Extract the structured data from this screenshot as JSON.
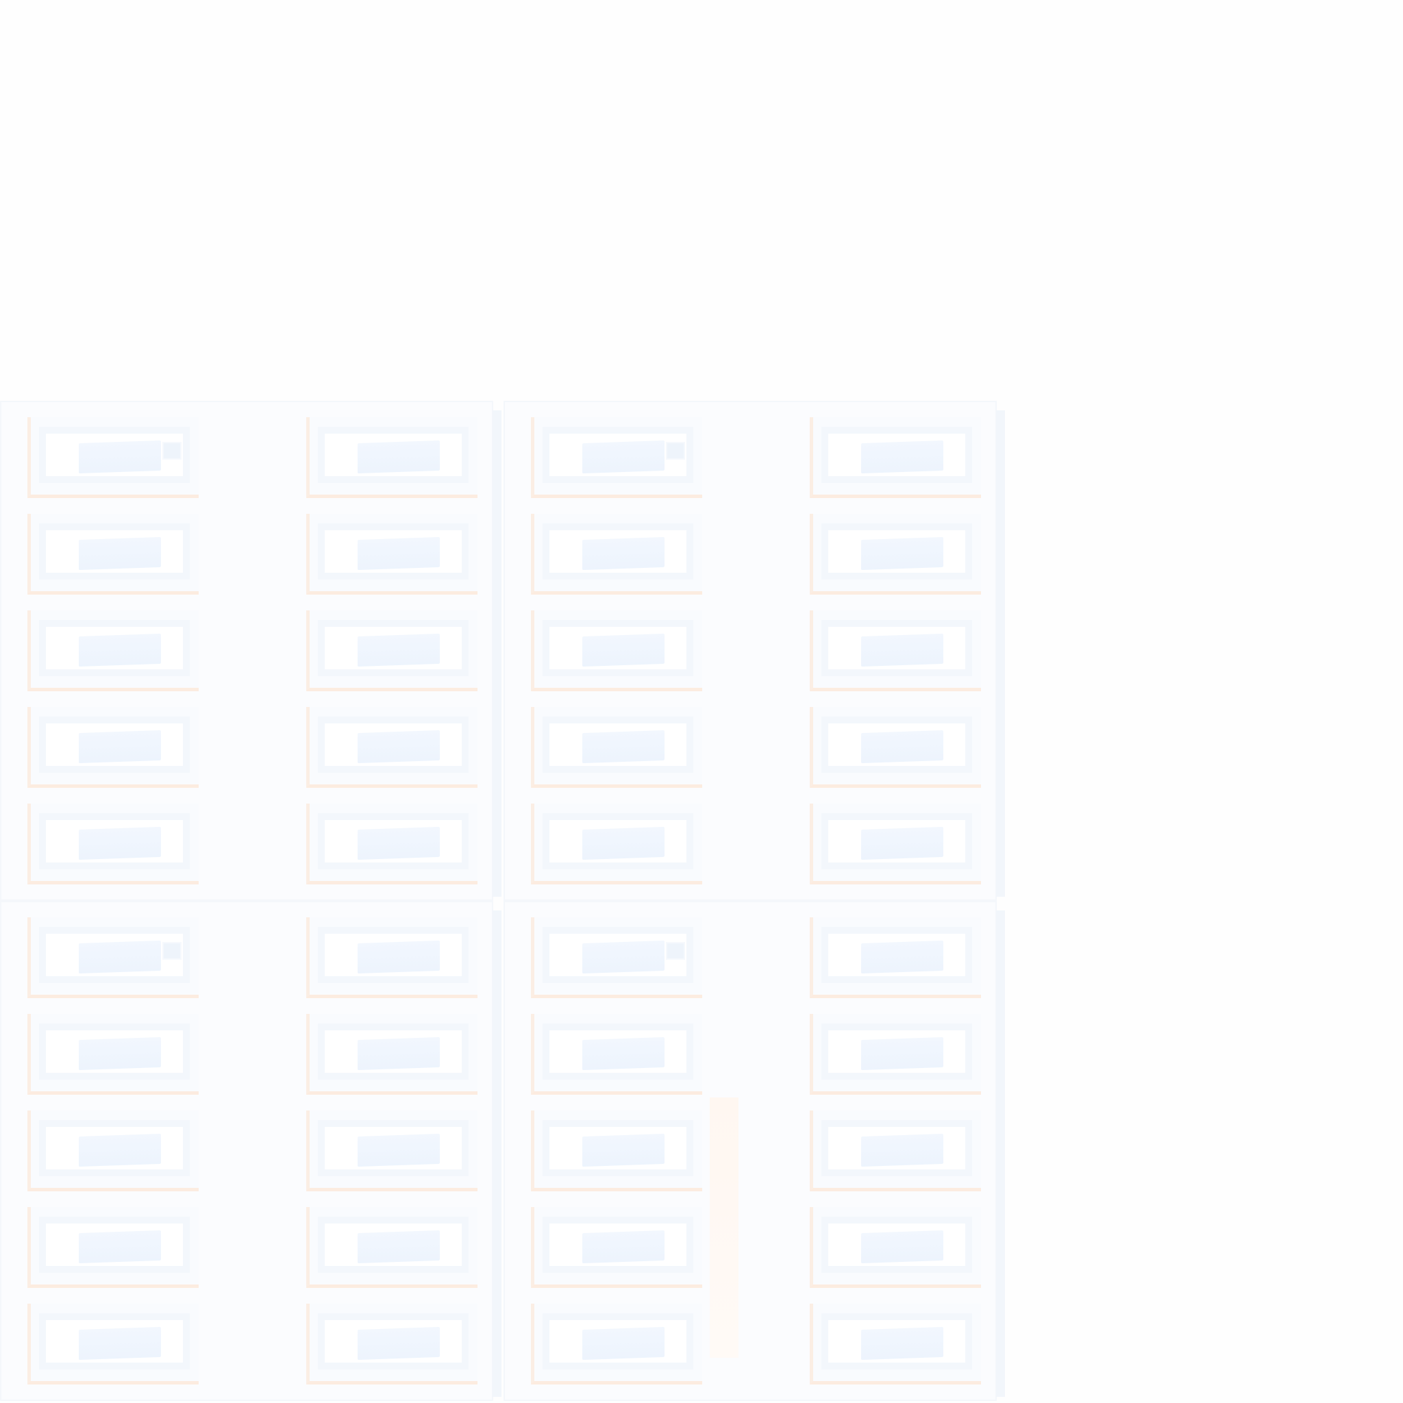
{
  "screen": {
    "background": "#fefefe",
    "board_background": "#fbfcfe",
    "tile_accent": "#fcece0",
    "label_color": "#edf4fd"
  },
  "board": {
    "quadrants": [
      {
        "id": "top-left",
        "rows": 5,
        "cols": 2,
        "badge_tile": 0
      },
      {
        "id": "top-right",
        "rows": 5,
        "cols": 2,
        "badge_tile": 0
      },
      {
        "id": "bottom-left",
        "rows": 5,
        "cols": 2,
        "badge_tile": 0
      },
      {
        "id": "bottom-right",
        "rows": 5,
        "cols": 2,
        "badge_tile": 0
      }
    ]
  }
}
